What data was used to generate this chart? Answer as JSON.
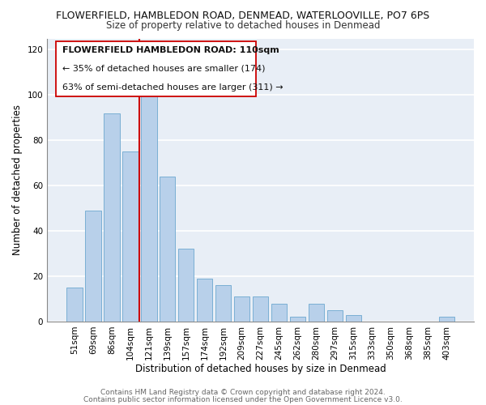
{
  "title": "FLOWERFIELD, HAMBLEDON ROAD, DENMEAD, WATERLOOVILLE, PO7 6PS",
  "subtitle": "Size of property relative to detached houses in Denmead",
  "xlabel": "Distribution of detached houses by size in Denmead",
  "ylabel": "Number of detached properties",
  "categories": [
    "51sqm",
    "69sqm",
    "86sqm",
    "104sqm",
    "121sqm",
    "139sqm",
    "157sqm",
    "174sqm",
    "192sqm",
    "209sqm",
    "227sqm",
    "245sqm",
    "262sqm",
    "280sqm",
    "297sqm",
    "315sqm",
    "333sqm",
    "350sqm",
    "368sqm",
    "385sqm",
    "403sqm"
  ],
  "values": [
    15,
    49,
    92,
    75,
    100,
    64,
    32,
    19,
    16,
    11,
    11,
    8,
    2,
    8,
    5,
    3,
    0,
    0,
    0,
    0,
    2
  ],
  "bar_color": "#b8d0ea",
  "bar_edge_color": "#7aafd4",
  "highlight_line_color": "#cc0000",
  "highlight_line_index": 4,
  "annotation_line1": "FLOWERFIELD HAMBLEDON ROAD: 110sqm",
  "annotation_line2": "← 35% of detached houses are smaller (174)",
  "annotation_line3": "63% of semi-detached houses are larger (311) →",
  "ylim": [
    0,
    125
  ],
  "yticks": [
    0,
    20,
    40,
    60,
    80,
    100,
    120
  ],
  "footer_line1": "Contains HM Land Registry data © Crown copyright and database right 2024.",
  "footer_line2": "Contains public sector information licensed under the Open Government Licence v3.0.",
  "background_color": "#ffffff",
  "plot_bg_color": "#e8eef6",
  "title_fontsize": 9.0,
  "subtitle_fontsize": 8.5,
  "axis_label_fontsize": 8.5,
  "tick_fontsize": 7.5,
  "annotation_fontsize": 8.0,
  "footer_fontsize": 6.5
}
